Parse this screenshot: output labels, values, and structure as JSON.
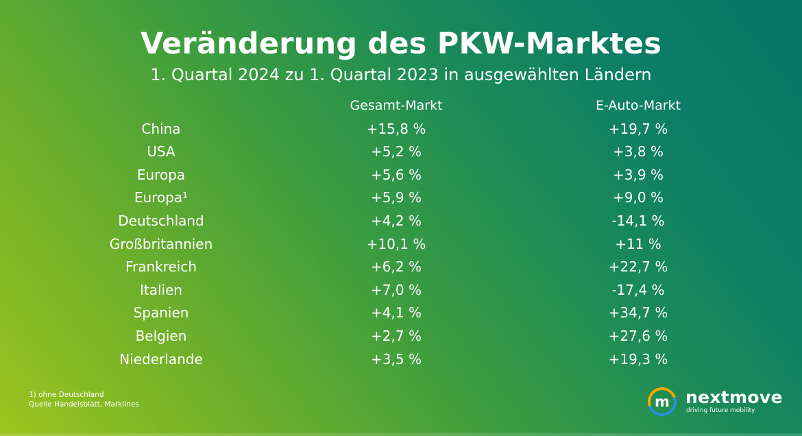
{
  "slide": {
    "title": "Veränderung des PKW-Marktes",
    "subtitle": "1. Quartal 2024 zu 1. Quartal 2023 in ausgewählten Ländern"
  },
  "table": {
    "headers": {
      "country": "",
      "total": "Gesamt-Markt",
      "ev": "E-Auto-Markt"
    },
    "rows": [
      {
        "country": "China",
        "total": "+15,8 %",
        "ev": "+19,7 %"
      },
      {
        "country": "USA",
        "total": "+5,2 %",
        "ev": "+3,8 %"
      },
      {
        "country": "Europa",
        "total": "+5,6 %",
        "ev": "+3,9 %"
      },
      {
        "country": "Europa¹",
        "total": "+5,9 %",
        "ev": "+9,0 %"
      },
      {
        "country": "Deutschland",
        "total": "+4,2 %",
        "ev": "-14,1 %"
      },
      {
        "country": "Großbritannien",
        "total": "+10,1 %",
        "ev": "+11 %"
      },
      {
        "country": "Frankreich",
        "total": "+6,2 %",
        "ev": "+22,7 %"
      },
      {
        "country": "Italien",
        "total": "+7,0 %",
        "ev": "-17,4 %"
      },
      {
        "country": "Spanien",
        "total": "+4,1 %",
        "ev": "+34,7 %"
      },
      {
        "country": "Belgien",
        "total": "+2,7 %",
        "ev": "+27,6 %"
      },
      {
        "country": "Niederlande",
        "total": "+3,5 %",
        "ev": "+19,3 %"
      }
    ]
  },
  "footer": {
    "footnote": "1) ohne Deutschland",
    "source": "Quelle Handelsblatt, Marklines"
  },
  "logo": {
    "name": "nextmove",
    "tagline": "driving future mobility",
    "mark_letter": "m",
    "mark_colors": [
      "#f5a800",
      "#2b8fd6",
      "#ffffff"
    ]
  },
  "colors": {
    "gradient_start": "#9cc51e",
    "gradient_end": "#07776a",
    "text": "#ffffff"
  }
}
